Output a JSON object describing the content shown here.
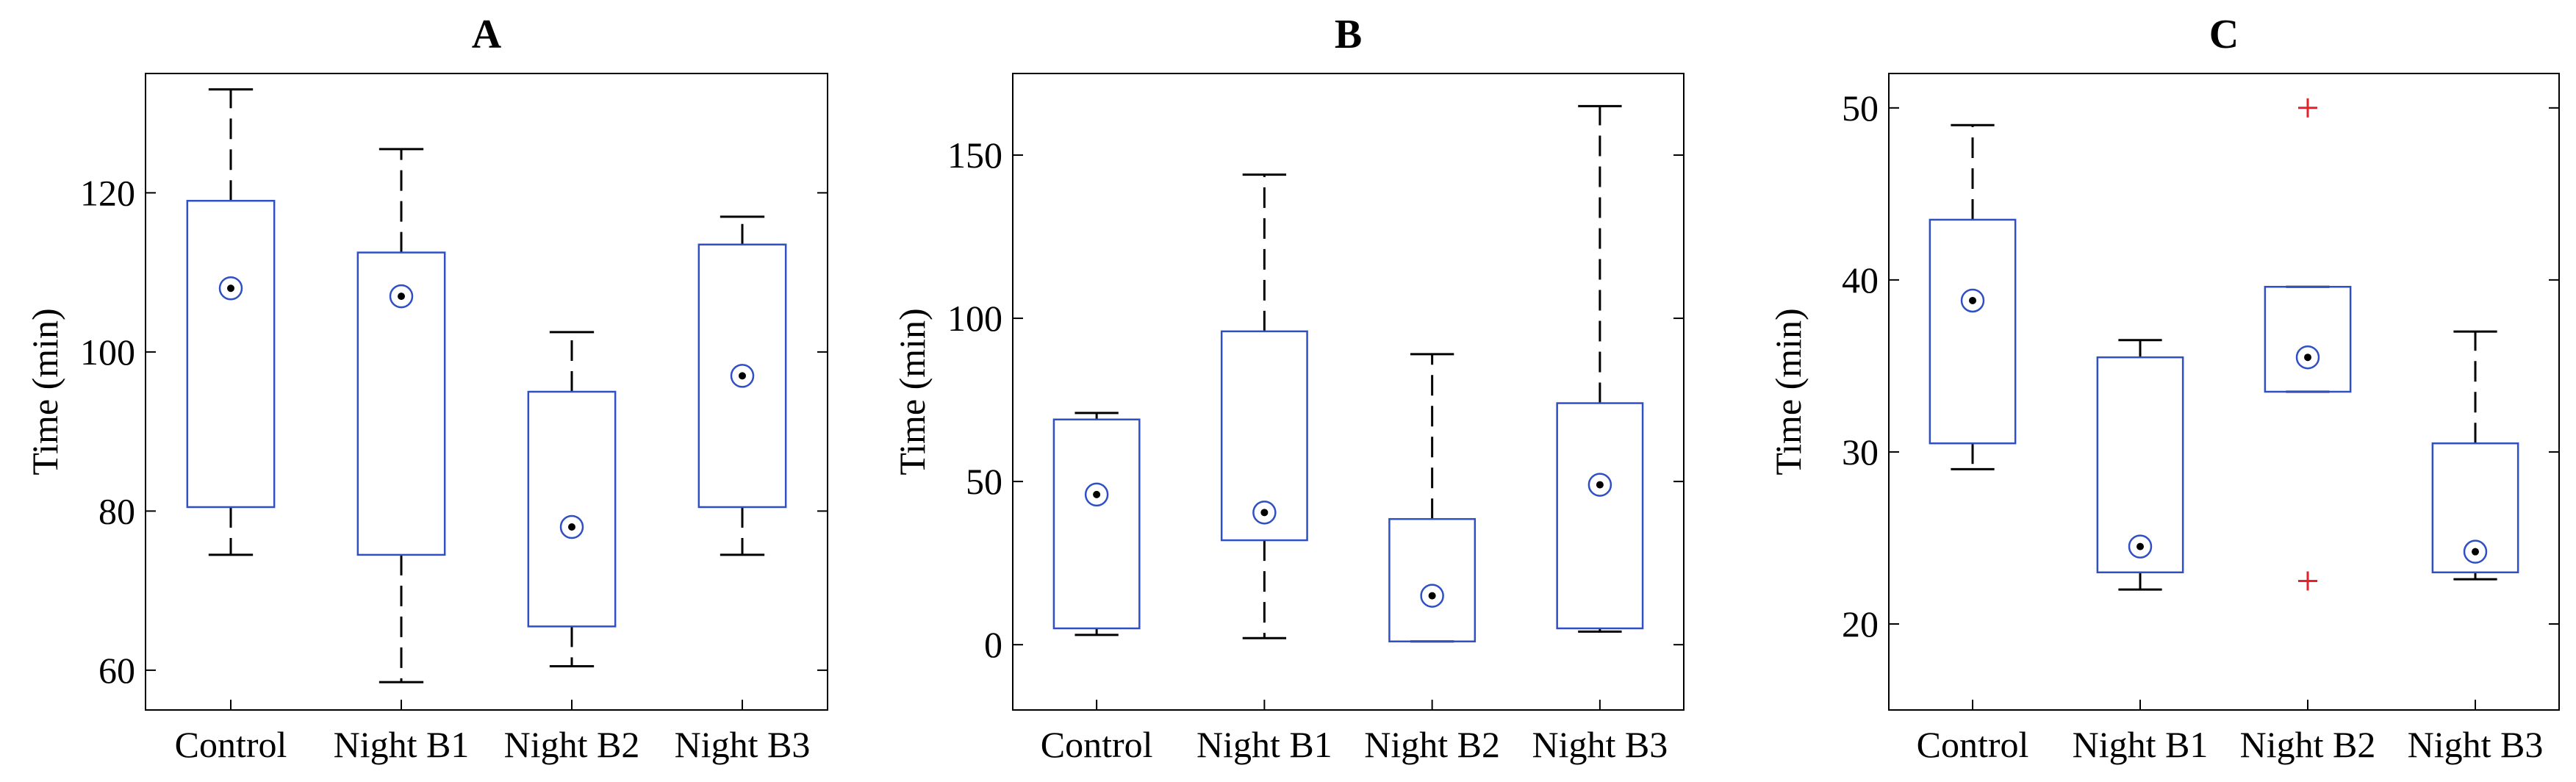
{
  "chart_data": [
    {
      "type": "box",
      "title": "A",
      "xlabel": "",
      "ylabel": "Time (min)",
      "ylim": [
        55,
        135
      ],
      "yticks": [
        60,
        80,
        100,
        120
      ],
      "grid": false,
      "categories": [
        "Control",
        "Night B1",
        "Night B2",
        "Night B3"
      ],
      "boxes": [
        {
          "whisker_low": 74.5,
          "q1": 80.5,
          "median": 108,
          "q3": 119,
          "whisker_high": 133,
          "outliers": []
        },
        {
          "whisker_low": 58.5,
          "q1": 74.5,
          "median": 107,
          "q3": 112.5,
          "whisker_high": 125.5,
          "outliers": []
        },
        {
          "whisker_low": 60.5,
          "q1": 65.5,
          "median": 78,
          "q3": 95,
          "whisker_high": 102.5,
          "outliers": []
        },
        {
          "whisker_low": 74.5,
          "q1": 80.5,
          "median": 97,
          "q3": 113.5,
          "whisker_high": 117,
          "outliers": []
        }
      ]
    },
    {
      "type": "box",
      "title": "B",
      "xlabel": "",
      "ylabel": "Time (min)",
      "ylim": [
        -20,
        175
      ],
      "yticks": [
        0,
        50,
        100,
        150
      ],
      "grid": false,
      "categories": [
        "Control",
        "Night B1",
        "Night B2",
        "Night B3"
      ],
      "boxes": [
        {
          "whisker_low": 3,
          "q1": 5,
          "median": 46,
          "q3": 69,
          "whisker_high": 71,
          "outliers": []
        },
        {
          "whisker_low": 2,
          "q1": 32,
          "median": 40.5,
          "q3": 96,
          "whisker_high": 144,
          "outliers": []
        },
        {
          "whisker_low": 1,
          "q1": 1,
          "median": 15,
          "q3": 38.5,
          "whisker_high": 89,
          "outliers": []
        },
        {
          "whisker_low": 4,
          "q1": 5,
          "median": 49,
          "q3": 74,
          "whisker_high": 165,
          "outliers": []
        }
      ]
    },
    {
      "type": "box",
      "title": "C",
      "xlabel": "",
      "ylabel": "Time (min)",
      "ylim": [
        15,
        52
      ],
      "yticks": [
        20,
        30,
        40,
        50
      ],
      "grid": false,
      "categories": [
        "Control",
        "Night B1",
        "Night B2",
        "Night B3"
      ],
      "boxes": [
        {
          "whisker_low": 29,
          "q1": 30.5,
          "median": 38.8,
          "q3": 43.5,
          "whisker_high": 49,
          "outliers": []
        },
        {
          "whisker_low": 22,
          "q1": 23,
          "median": 24.5,
          "q3": 35.5,
          "whisker_high": 36.5,
          "outliers": []
        },
        {
          "whisker_low": 33.5,
          "q1": 33.5,
          "median": 35.5,
          "q3": 39.6,
          "whisker_high": 39.6,
          "outliers": [
            50,
            22.5
          ]
        },
        {
          "whisker_low": 22.6,
          "q1": 23,
          "median": 24.2,
          "q3": 30.5,
          "whisker_high": 37,
          "outliers": []
        }
      ]
    }
  ],
  "colors": {
    "box": "#2f4fc4",
    "whisker": "#000000",
    "outlier": "#e8202a",
    "axis": "#000000"
  }
}
